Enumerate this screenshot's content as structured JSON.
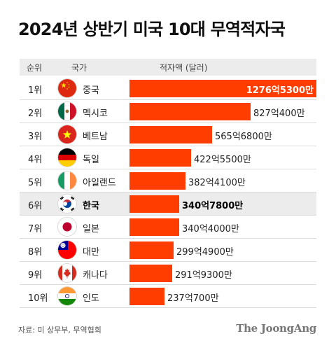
{
  "title": "2024년 상반기 미국 10대 무역적자국",
  "header": {
    "rank": "순위",
    "country": "국가",
    "deficit": "적자액 (달러)"
  },
  "chart_data": {
    "type": "bar",
    "orientation": "horizontal",
    "title": "2024년 상반기 미국 10대 무역적자국",
    "bar_color": "#ff3d00",
    "highlight_color": "#ececec",
    "rows": [
      {
        "rank": "1위",
        "country": "중국",
        "value_label": "1276억5300만",
        "value": 127653000000,
        "flag": "china-flag-icon",
        "bold": false,
        "highlight": false
      },
      {
        "rank": "2위",
        "country": "멕시코",
        "value_label": "827억400만",
        "value": 82704000000,
        "flag": "mexico-flag-icon",
        "bold": false,
        "highlight": false
      },
      {
        "rank": "3위",
        "country": "베트남",
        "value_label": "565억6800만",
        "value": 56568000000,
        "flag": "vietnam-flag-icon",
        "bold": false,
        "highlight": false
      },
      {
        "rank": "4위",
        "country": "독일",
        "value_label": "422억5500만",
        "value": 42255000000,
        "flag": "germany-flag-icon",
        "bold": false,
        "highlight": false
      },
      {
        "rank": "5위",
        "country": "아일랜드",
        "value_label": "382억4100만",
        "value": 38241000000,
        "flag": "ireland-flag-icon",
        "bold": false,
        "highlight": false
      },
      {
        "rank": "6위",
        "country": "한국",
        "value_label": "340억7800만",
        "value": 34078000000,
        "flag": "korea-flag-icon",
        "bold": true,
        "highlight": true
      },
      {
        "rank": "7위",
        "country": "일본",
        "value_label": "340억4000만",
        "value": 34040000000,
        "flag": "japan-flag-icon",
        "bold": false,
        "highlight": false
      },
      {
        "rank": "8위",
        "country": "대만",
        "value_label": "299억4900만",
        "value": 29949000000,
        "flag": "taiwan-flag-icon",
        "bold": false,
        "highlight": false
      },
      {
        "rank": "9위",
        "country": "캐나다",
        "value_label": "291억9300만",
        "value": 29193000000,
        "flag": "canada-flag-icon",
        "bold": false,
        "highlight": false
      },
      {
        "rank": "10위",
        "country": "인도",
        "value_label": "237억700만",
        "value": 23707000000,
        "flag": "india-flag-icon",
        "bold": false,
        "highlight": false
      }
    ]
  },
  "source": "자료: 미 상무부, 무역협회",
  "logo": "The JoongAng"
}
